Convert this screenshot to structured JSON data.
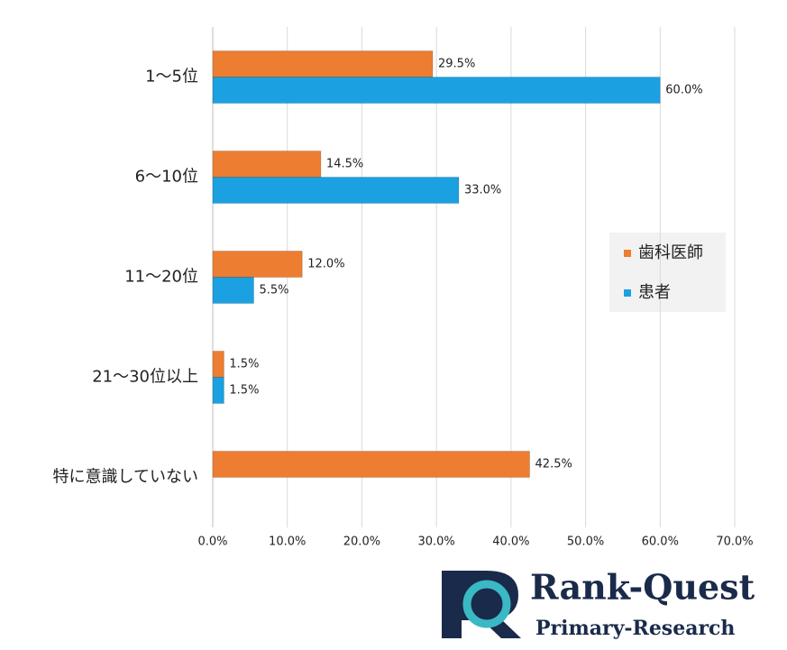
{
  "chart_data": {
    "type": "bar",
    "orientation": "horizontal",
    "categories": [
      "1～5位",
      "6～10位",
      "11～20位",
      "21～30位以上",
      "特に意識していない"
    ],
    "series": [
      {
        "name": "歯科医師",
        "color": "#ed7d31",
        "values": [
          29.5,
          14.5,
          12.0,
          1.5,
          42.5
        ],
        "value_labels": [
          "29.5%",
          "14.5%",
          "12.0%",
          "1.5%",
          "42.5%"
        ]
      },
      {
        "name": "患者",
        "color": "#1ba1e2",
        "values": [
          60.0,
          33.0,
          5.5,
          1.5,
          null
        ],
        "value_labels": [
          "60.0%",
          "33.0%",
          "5.5%",
          "1.5%",
          null
        ]
      }
    ],
    "xlim": [
      0,
      70
    ],
    "xticks": [
      {
        "value": 0,
        "label": "0.0%"
      },
      {
        "value": 10,
        "label": "10.0%"
      },
      {
        "value": 20,
        "label": "20.0%"
      },
      {
        "value": 30,
        "label": "30.0%"
      },
      {
        "value": 40,
        "label": "40.0%"
      },
      {
        "value": 50,
        "label": "50.0%"
      },
      {
        "value": 60,
        "label": "60.0%"
      },
      {
        "value": 70,
        "label": "70.0%"
      }
    ],
    "grid": true,
    "legend": "right"
  },
  "logo": {
    "title": "Rank-Quest",
    "subtitle": "Primary-Research"
  }
}
